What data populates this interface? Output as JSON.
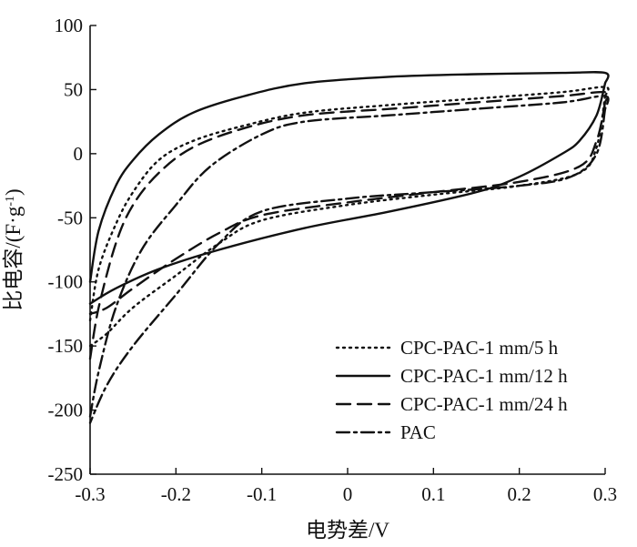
{
  "chart_data": {
    "type": "line",
    "title": "",
    "xlabel": "电势差/V",
    "ylabel_main": "比电容/(F·g",
    "ylabel_sup": "-1",
    "ylabel_close": ")",
    "xlim": [
      -0.3,
      0.3
    ],
    "ylim": [
      -250,
      100
    ],
    "xticks": [
      -0.3,
      -0.2,
      -0.1,
      0,
      0.1,
      0.2,
      0.3
    ],
    "xtick_labels": [
      "-0.3",
      "-0.2",
      "-0.1",
      "0",
      "0.1",
      "0.2",
      "0.3"
    ],
    "yticks": [
      100,
      50,
      0,
      -50,
      -100,
      -150,
      -200,
      -250
    ],
    "ytick_labels": [
      "100",
      "50",
      "0",
      "-50",
      "-100",
      "-150",
      "-200",
      "-250"
    ],
    "grid": false,
    "legend_position": "bottom-right",
    "series": [
      {
        "name": "CPC-PAC-1 mm/5 h",
        "style": "dotted",
        "color": "#111111",
        "upper": [
          [
            -0.3,
            -130
          ],
          [
            -0.29,
            -90
          ],
          [
            -0.27,
            -55
          ],
          [
            -0.25,
            -30
          ],
          [
            -0.22,
            -5
          ],
          [
            -0.18,
            10
          ],
          [
            -0.12,
            22
          ],
          [
            -0.05,
            32
          ],
          [
            0.05,
            38
          ],
          [
            0.15,
            43
          ],
          [
            0.25,
            48
          ],
          [
            0.3,
            52
          ],
          [
            0.3,
            45
          ]
        ],
        "lower": [
          [
            0.3,
            45
          ],
          [
            0.29,
            5
          ],
          [
            0.27,
            -15
          ],
          [
            0.2,
            -25
          ],
          [
            0.1,
            -32
          ],
          [
            0,
            -40
          ],
          [
            -0.1,
            -52
          ],
          [
            -0.15,
            -70
          ],
          [
            -0.2,
            -95
          ],
          [
            -0.25,
            -120
          ],
          [
            -0.28,
            -140
          ],
          [
            -0.3,
            -150
          ]
        ]
      },
      {
        "name": "CPC-PAC-1 mm/12 h",
        "style": "solid",
        "color": "#111111",
        "upper": [
          [
            -0.3,
            -100
          ],
          [
            -0.29,
            -60
          ],
          [
            -0.27,
            -25
          ],
          [
            -0.25,
            -5
          ],
          [
            -0.22,
            15
          ],
          [
            -0.18,
            32
          ],
          [
            -0.12,
            45
          ],
          [
            -0.05,
            55
          ],
          [
            0.05,
            60
          ],
          [
            0.15,
            62
          ],
          [
            0.25,
            63
          ],
          [
            0.3,
            63
          ],
          [
            0.3,
            55
          ]
        ],
        "lower": [
          [
            0.3,
            55
          ],
          [
            0.29,
            30
          ],
          [
            0.27,
            10
          ],
          [
            0.25,
            0
          ],
          [
            0.2,
            -18
          ],
          [
            0.15,
            -30
          ],
          [
            0.05,
            -45
          ],
          [
            -0.05,
            -58
          ],
          [
            -0.15,
            -75
          ],
          [
            -0.22,
            -90
          ],
          [
            -0.27,
            -105
          ],
          [
            -0.3,
            -117
          ]
        ]
      },
      {
        "name": "CPC-PAC-1 mm/24 h",
        "style": "dashed",
        "color": "#111111",
        "upper": [
          [
            -0.3,
            -160
          ],
          [
            -0.29,
            -120
          ],
          [
            -0.27,
            -70
          ],
          [
            -0.25,
            -40
          ],
          [
            -0.22,
            -15
          ],
          [
            -0.18,
            5
          ],
          [
            -0.12,
            20
          ],
          [
            -0.05,
            30
          ],
          [
            0.05,
            35
          ],
          [
            0.15,
            40
          ],
          [
            0.25,
            45
          ],
          [
            0.3,
            48
          ],
          [
            0.3,
            40
          ]
        ],
        "lower": [
          [
            0.3,
            40
          ],
          [
            0.29,
            10
          ],
          [
            0.27,
            -10
          ],
          [
            0.2,
            -22
          ],
          [
            0.1,
            -30
          ],
          [
            0,
            -38
          ],
          [
            -0.1,
            -48
          ],
          [
            -0.15,
            -62
          ],
          [
            -0.2,
            -82
          ],
          [
            -0.25,
            -105
          ],
          [
            -0.28,
            -120
          ],
          [
            -0.3,
            -125
          ]
        ]
      },
      {
        "name": "PAC",
        "style": "dash-dot",
        "color": "#111111",
        "upper": [
          [
            -0.3,
            -205
          ],
          [
            -0.29,
            -170
          ],
          [
            -0.27,
            -120
          ],
          [
            -0.24,
            -75
          ],
          [
            -0.2,
            -40
          ],
          [
            -0.16,
            -10
          ],
          [
            -0.1,
            15
          ],
          [
            -0.05,
            25
          ],
          [
            0.05,
            30
          ],
          [
            0.15,
            35
          ],
          [
            0.25,
            40
          ],
          [
            0.3,
            45
          ],
          [
            0.3,
            35
          ]
        ],
        "lower": [
          [
            0.3,
            35
          ],
          [
            0.29,
            0
          ],
          [
            0.26,
            -18
          ],
          [
            0.2,
            -25
          ],
          [
            0.1,
            -30
          ],
          [
            0,
            -35
          ],
          [
            -0.1,
            -45
          ],
          [
            -0.15,
            -70
          ],
          [
            -0.2,
            -110
          ],
          [
            -0.25,
            -150
          ],
          [
            -0.28,
            -180
          ],
          [
            -0.3,
            -210
          ]
        ]
      }
    ]
  }
}
